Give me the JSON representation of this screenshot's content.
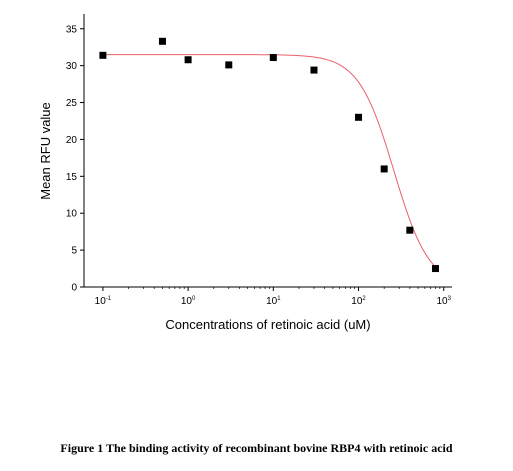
{
  "caption": "Figure 1 The binding activity of recombinant bovine RBP4 with retinoic acid",
  "chart_data": {
    "type": "scatter",
    "xlabel": "Concentrations of retinoic acid (uM)",
    "ylabel": "Mean RFU value",
    "x_scale": "log",
    "xlim": [
      0.06,
      1250
    ],
    "ylim": [
      0,
      37
    ],
    "y_ticks": [
      0,
      5,
      10,
      15,
      20,
      25,
      30,
      35
    ],
    "x_ticks": [
      {
        "value": 0.1,
        "base": "10",
        "exp": "-1"
      },
      {
        "value": 1,
        "base": "10",
        "exp": "0"
      },
      {
        "value": 10,
        "base": "10",
        "exp": "1"
      },
      {
        "value": 100,
        "base": "10",
        "exp": "2"
      },
      {
        "value": 1000,
        "base": "10",
        "exp": "3"
      }
    ],
    "grid": false,
    "legend": "none",
    "series": [
      {
        "marker": "square",
        "color": "#000000",
        "points": [
          {
            "x": 0.1,
            "y": 31.4
          },
          {
            "x": 0.5,
            "y": 33.3
          },
          {
            "x": 1,
            "y": 30.8
          },
          {
            "x": 3,
            "y": 30.1
          },
          {
            "x": 10,
            "y": 31.1
          },
          {
            "x": 30,
            "y": 29.4
          },
          {
            "x": 100,
            "y": 23.0
          },
          {
            "x": 200,
            "y": 16.0
          },
          {
            "x": 400,
            "y": 7.7
          },
          {
            "x": 800,
            "y": 2.5
          }
        ]
      }
    ],
    "fit_curve": {
      "type": "logistic",
      "color": "#e8606a",
      "top": 31.5,
      "bottom": 0,
      "ic50": 260,
      "hill": 2.1,
      "x_range": [
        0.1,
        800
      ]
    }
  }
}
